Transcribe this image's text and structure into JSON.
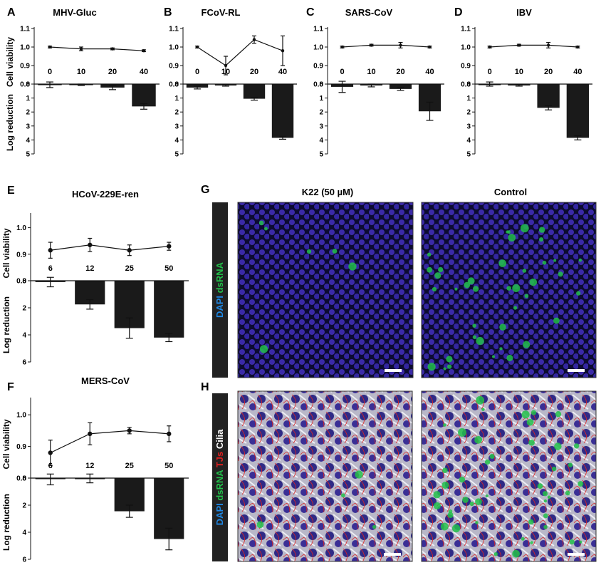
{
  "figure": {
    "colors": {
      "bar": "#1a1a1a",
      "line": "#111111",
      "micro_bg": "#0b0b2a",
      "nuclei": "#3b2aa8",
      "dsrna": "#22c04a",
      "tj": "#e02020",
      "cilia": "#d8d8e0"
    },
    "labels": {
      "viability": "Cell viability",
      "reduction": "Log reduction"
    },
    "panel_letters": {
      "G": "G",
      "H": "H"
    },
    "micro": {
      "col_k22": "K22 (50 µM)",
      "col_control": "Control",
      "stain_g": [
        {
          "text": "DAPI ",
          "color": "#1e88e5"
        },
        {
          "text": "dsRNA",
          "color": "#22c04a"
        }
      ],
      "stain_h": [
        {
          "text": "DAPI ",
          "color": "#1e88e5"
        },
        {
          "text": "dsRNA ",
          "color": "#22c04a"
        },
        {
          "text": "TJs ",
          "color": "#e02020"
        },
        {
          "text": "Cilia",
          "color": "#ffffff"
        }
      ]
    }
  },
  "chart_data": [
    {
      "id": "A",
      "type": "bar",
      "title": "MHV-Gluc",
      "categories": [
        "0",
        "10",
        "20",
        "40"
      ],
      "viability": {
        "values": [
          1.0,
          0.99,
          0.99,
          0.98
        ],
        "errors": [
          0.005,
          0.01,
          0.005,
          0.005
        ],
        "ylim": [
          0.8,
          1.1
        ],
        "ticks": [
          "0.8",
          "0.9",
          "1.0",
          "1.1"
        ]
      },
      "reduction": {
        "values": [
          0.05,
          0.05,
          0.25,
          1.6
        ],
        "errors": [
          0.2,
          0.05,
          0.15,
          0.2
        ],
        "ylim": [
          0,
          5
        ],
        "ticks": [
          "0",
          "1",
          "2",
          "3",
          "4",
          "5"
        ]
      }
    },
    {
      "id": "B",
      "type": "bar",
      "title": "FCoV-RL",
      "categories": [
        "0",
        "10",
        "20",
        "40"
      ],
      "viability": {
        "values": [
          1.0,
          0.9,
          1.04,
          0.98
        ],
        "errors": [
          0.005,
          0.05,
          0.02,
          0.08
        ],
        "ylim": [
          0.8,
          1.1
        ],
        "ticks": [
          "0.8",
          "0.9",
          "1.0",
          "1.1"
        ]
      },
      "reduction": {
        "values": [
          0.25,
          0.1,
          1.05,
          3.85
        ],
        "errors": [
          0.1,
          0.05,
          0.1,
          0.1
        ],
        "ylim": [
          0,
          5
        ],
        "ticks": [
          "0",
          "1",
          "2",
          "3",
          "4",
          "5"
        ]
      }
    },
    {
      "id": "C",
      "type": "bar",
      "title": "SARS-CoV",
      "categories": [
        "0",
        "10",
        "20",
        "40"
      ],
      "viability": {
        "values": [
          1.0,
          1.01,
          1.01,
          1.0
        ],
        "errors": [
          0.005,
          0.005,
          0.015,
          0.005
        ],
        "ylim": [
          0.8,
          1.1
        ],
        "ticks": [
          "0.8",
          "0.9",
          "1.0",
          "1.1"
        ]
      },
      "reduction": {
        "values": [
          0.2,
          0.1,
          0.35,
          1.95
        ],
        "errors": [
          0.4,
          0.1,
          0.1,
          0.65
        ],
        "ylim": [
          0,
          5
        ],
        "ticks": [
          "0",
          "1",
          "2",
          "3",
          "4",
          "5"
        ]
      }
    },
    {
      "id": "D",
      "type": "bar",
      "title": "IBV",
      "categories": [
        "0",
        "10",
        "20",
        "40"
      ],
      "viability": {
        "values": [
          1.0,
          1.01,
          1.01,
          1.0
        ],
        "errors": [
          0.005,
          0.005,
          0.015,
          0.005
        ],
        "ylim": [
          0.8,
          1.1
        ],
        "ticks": [
          "0.8",
          "0.9",
          "1.0",
          "1.1"
        ]
      },
      "reduction": {
        "values": [
          0.0,
          0.1,
          1.7,
          3.85
        ],
        "errors": [
          0.15,
          0.05,
          0.15,
          0.15
        ],
        "ylim": [
          0,
          5
        ],
        "ticks": [
          "0",
          "1",
          "2",
          "3",
          "4",
          "5"
        ]
      }
    },
    {
      "id": "E",
      "type": "bar",
      "title": "HCoV-229E-ren",
      "categories": [
        "6",
        "12",
        "25",
        "50"
      ],
      "viability": {
        "values": [
          0.915,
          0.935,
          0.915,
          0.93
        ],
        "errors": [
          0.03,
          0.025,
          0.02,
          0.015
        ],
        "ylim": [
          0.8,
          1.05
        ],
        "ticks": [
          "0.8",
          "0.9",
          "1.0"
        ]
      },
      "reduction": {
        "values": [
          0.1,
          1.75,
          3.5,
          4.2
        ],
        "errors": [
          0.35,
          0.35,
          0.75,
          0.3
        ],
        "ylim": [
          0,
          6
        ],
        "ticks": [
          "0",
          "2",
          "4",
          "6"
        ]
      }
    },
    {
      "id": "F",
      "type": "bar",
      "title": "MERS-CoV",
      "categories": [
        "6",
        "12",
        "25",
        "50"
      ],
      "viability": {
        "values": [
          0.88,
          0.94,
          0.95,
          0.94
        ],
        "errors": [
          0.04,
          0.035,
          0.01,
          0.025
        ],
        "ylim": [
          0.8,
          1.05
        ],
        "ticks": [
          "0.8",
          "0.9",
          "1.0"
        ]
      },
      "reduction": {
        "values": [
          0.05,
          0.0,
          2.45,
          4.5
        ],
        "errors": [
          0.45,
          0.35,
          0.45,
          0.8
        ],
        "ylim": [
          0,
          6
        ],
        "ticks": [
          "0",
          "2",
          "4",
          "6"
        ]
      }
    }
  ]
}
